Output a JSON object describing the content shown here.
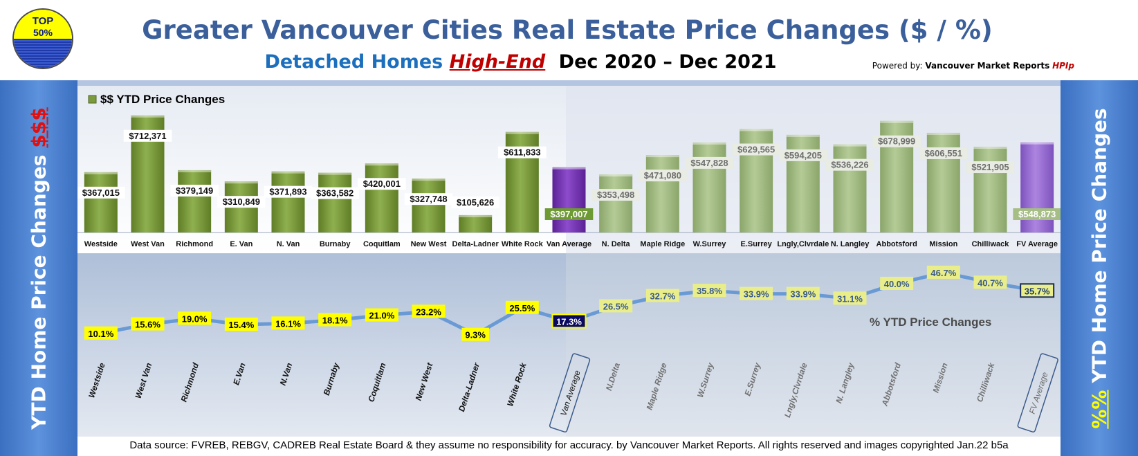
{
  "header": {
    "badge_top": "TOP",
    "badge_bottom": "50%",
    "title": "Greater Vancouver Cities Real Estate Price Changes ($ / %)",
    "subtitle_a": "Detached Homes",
    "subtitle_b": "High-End",
    "subtitle_c": "Dec 2020 – Dec 2021",
    "powered_label": "Powered by:",
    "powered_name": "Vancouver Market Reports",
    "powered_brand": "HPIp"
  },
  "sidebars": {
    "left_text": "YTD Home Price Changes",
    "left_accent": "$$$",
    "right_accent": "%%",
    "right_text": "YTD Home Price  Changes"
  },
  "footer": "Data source: FVREB, REBGV, CADREB Real Estate Board & they assume no responsibility for accuracy. by Vancouver Market Reports. All rights reserved and  images copyrighted Jan.22 b5a",
  "colors": {
    "van_bar": "#7a9a3c",
    "van_avg_bar": "#7a35b8",
    "fv_bar": "#a6be85",
    "fv_avg_bar": "#9a6fd4",
    "line": "#6a9ad4",
    "label_yellow": "#ffff00",
    "label_navy": "#0a0a60"
  },
  "chart_data": [
    {
      "type": "bar",
      "legend": "$$ YTD Price Changes",
      "legend_position": "top-left",
      "categories": [
        "Westside",
        "West Van",
        "Richmond",
        "E. Van",
        "N. Van",
        "Burnaby",
        "Coquitlam",
        "New West",
        "Delta-Ladner",
        "White Rock",
        "Van Average",
        "N. Delta",
        "Maple Ridge",
        "W.Surrey",
        "E.Surrey",
        "Lngly,Clvrdale",
        "N. Langley",
        "Abbotsford",
        "Mission",
        "Chilliwack",
        "FV Average"
      ],
      "values": [
        367015,
        712371,
        379149,
        310849,
        371893,
        363582,
        420001,
        327748,
        105626,
        611833,
        397007,
        353498,
        471080,
        547828,
        629565,
        594205,
        536226,
        678999,
        606551,
        521905,
        548873
      ],
      "value_labels": [
        "$367,015",
        "$712,371",
        "$379,149",
        "$310,849",
        "$371,893",
        "$363,582",
        "$420,001",
        "$327,748",
        "$105,626",
        "$611,833",
        "$397,007",
        "$353,498",
        "$471,080",
        "$547,828",
        "$629,565",
        "$594,205",
        "$536,226",
        "$678,999",
        "$606,551",
        "$521,905",
        "$548,873"
      ],
      "ylim": [
        0,
        800000
      ]
    },
    {
      "type": "line",
      "legend": "% YTD Price Changes",
      "legend_position": "right",
      "categories": [
        "Westside",
        "West Van",
        "Richmond",
        "E.Van",
        "N.Van",
        "Burnaby",
        "Coquitlam",
        "New West",
        "Delta-Ladner",
        "White Rock",
        "Van Average",
        "N.Delta",
        "Maple Ridge",
        "W.Surrey",
        "E.Surrey",
        "Lngly,Clvrdale",
        "N. Langley",
        "Abbotsford",
        "Mission",
        "Chilliwack",
        "FV Average"
      ],
      "values": [
        10.1,
        15.6,
        19.0,
        15.4,
        16.1,
        18.1,
        21.0,
        23.2,
        9.3,
        25.5,
        17.3,
        26.5,
        32.7,
        35.8,
        33.9,
        33.9,
        31.1,
        40.0,
        46.7,
        40.7,
        35.7
      ],
      "value_labels": [
        "10.1%",
        "15.6%",
        "19.0%",
        "15.4%",
        "16.1%",
        "18.1%",
        "21.0%",
        "23.2%",
        "9.3%",
        "25.5%",
        "17.3%",
        "26.5%",
        "32.7%",
        "35.8%",
        "33.9%",
        "33.9%",
        "31.1%",
        "40.0%",
        "46.7%",
        "40.7%",
        "35.7%"
      ],
      "ylim": [
        5,
        50
      ]
    }
  ]
}
